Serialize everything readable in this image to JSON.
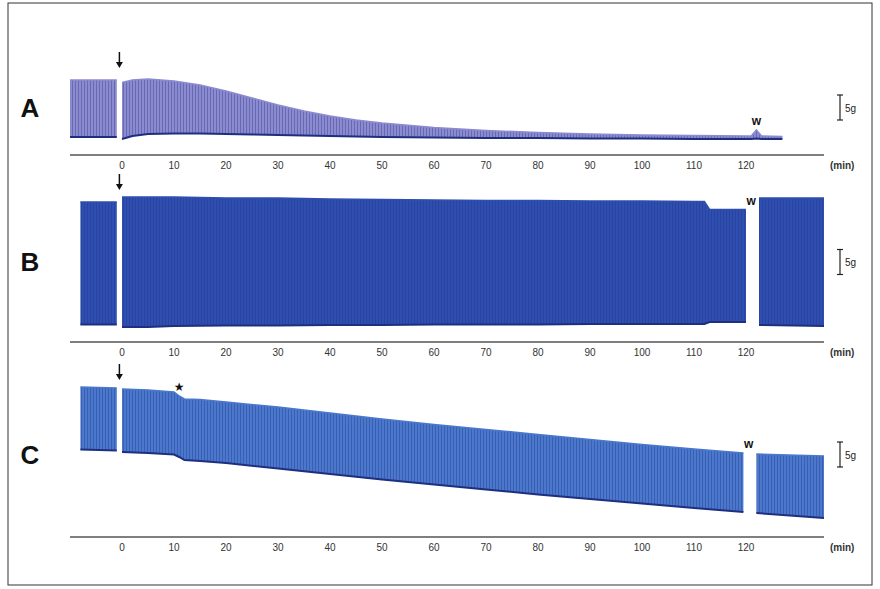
{
  "chart_data": [
    {
      "type": "area",
      "title": "A",
      "color": "#8c8bd0",
      "x": [
        -10,
        -6,
        -2,
        -1,
        -0.5,
        0,
        2,
        5,
        10,
        15,
        20,
        25,
        30,
        35,
        40,
        45,
        50,
        60,
        70,
        80,
        90,
        100,
        110,
        120,
        121,
        122,
        123,
        127
      ],
      "upper": [
        12,
        12,
        12,
        12,
        null,
        11.5,
        12,
        12.2,
        11.8,
        11,
        9.8,
        8.4,
        7,
        5.8,
        4.8,
        4,
        3.4,
        2.5,
        1.9,
        1.5,
        1.2,
        1,
        0.9,
        0.8,
        0.8,
        2,
        0.8,
        0.7
      ],
      "lower": [
        0.6,
        0.6,
        0.6,
        0.6,
        null,
        0.2,
        0.8,
        1.2,
        1.3,
        1.3,
        1.2,
        1.1,
        1,
        0.9,
        0.8,
        0.7,
        0.6,
        0.5,
        0.4,
        0.4,
        0.3,
        0.3,
        0.2,
        0.2,
        0.2,
        0.3,
        0.2,
        0.2
      ],
      "xlim": [
        -10,
        135
      ],
      "xticks": [
        0,
        10,
        20,
        30,
        40,
        50,
        60,
        70,
        80,
        90,
        100,
        110,
        120
      ],
      "ylim": [
        -1,
        14
      ],
      "x_label": "(min)",
      "tick_labels": "x",
      "scale_bar": {
        "value": 5,
        "label": "5g"
      },
      "annotations": [
        {
          "text": "w",
          "x": 122
        }
      ]
    },
    {
      "type": "area",
      "title": "B",
      "color": "#2f4fb0",
      "x": [
        -8,
        -1,
        -0.5,
        0,
        5,
        10,
        20,
        30,
        40,
        50,
        60,
        70,
        80,
        90,
        100,
        110,
        112,
        113,
        120,
        121,
        122.5,
        135
      ],
      "upper": [
        25,
        25,
        null,
        26,
        26,
        26,
        25.8,
        25.8,
        25.6,
        25.5,
        25.4,
        25.3,
        25.3,
        25.2,
        25.2,
        25.1,
        25.1,
        23.5,
        23.5,
        null,
        25.8,
        25.8
      ],
      "lower": [
        0.5,
        0.5,
        null,
        0,
        0,
        0.2,
        0.3,
        0.3,
        0.4,
        0.4,
        0.5,
        0.5,
        0.5,
        0.6,
        0.6,
        0.6,
        0.6,
        1,
        1,
        null,
        0.4,
        0.2
      ],
      "xlim": [
        -10,
        135
      ],
      "xticks": [
        0,
        10,
        20,
        30,
        40,
        50,
        60,
        70,
        80,
        90,
        100,
        110,
        120
      ],
      "ylim": [
        -1,
        27
      ],
      "x_label": "(min)",
      "tick_labels": "x",
      "scale_bar": {
        "value": 5,
        "label": "5g"
      },
      "annotations": [
        {
          "text": "w",
          "x": 121
        }
      ]
    },
    {
      "type": "area",
      "title": "C",
      "color": "#4a78cc",
      "x": [
        -8,
        -1,
        -0.5,
        0,
        5,
        10,
        11,
        12,
        15,
        20,
        30,
        40,
        50,
        60,
        70,
        80,
        90,
        100,
        110,
        119.5,
        120.5,
        122,
        135
      ],
      "upper": [
        27,
        26.8,
        null,
        26.6,
        26.4,
        26,
        25.2,
        24.6,
        24.5,
        24,
        23,
        21.8,
        20.6,
        19.5,
        18.5,
        17.5,
        16.5,
        15.5,
        14.6,
        13.8,
        null,
        13.6,
        13.2
      ],
      "lower": [
        14.5,
        14.3,
        null,
        14,
        13.8,
        13.5,
        13,
        12.4,
        12.2,
        11.8,
        10.7,
        9.6,
        8.5,
        7.5,
        6.5,
        5.5,
        4.6,
        3.7,
        2.8,
        2,
        null,
        1.8,
        0.8
      ],
      "xlim": [
        -10,
        135
      ],
      "xticks": [
        0,
        10,
        20,
        30,
        40,
        50,
        60,
        70,
        80,
        90,
        100,
        110,
        120
      ],
      "ylim": [
        -1,
        28
      ],
      "x_label": "(min)",
      "tick_labels": "x",
      "scale_bar": {
        "value": 5,
        "label": "5g"
      },
      "annotations": [
        {
          "text": "★",
          "x": 11
        },
        {
          "text": "w",
          "x": 120.5
        }
      ]
    }
  ]
}
